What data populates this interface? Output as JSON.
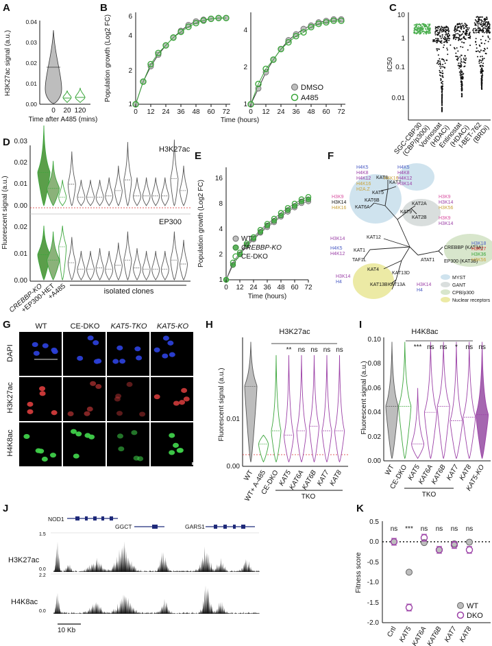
{
  "panels": [
    "A",
    "B",
    "C",
    "D",
    "E",
    "F",
    "G",
    "H",
    "I",
    "J",
    "K"
  ],
  "chart_data": [
    {
      "panel": "A",
      "type": "violin",
      "ylabel": "H3K27ac signal (a.u.)",
      "xlabel": "Time after A485 (mins)",
      "categories": [
        "0",
        "20",
        "120"
      ],
      "medians": [
        0.018,
        0.004,
        0.004
      ],
      "ylim": [
        0,
        0.04
      ],
      "yticks": [
        "0.00",
        "0.01",
        "0.02",
        "0.03",
        "0.04"
      ],
      "colors": [
        "#bdbdbd",
        "#3aa53a",
        "#3aa53a"
      ]
    },
    {
      "panel": "B",
      "type": "line",
      "xlabel": "Time (hours)",
      "ylabel": "Population growth (Log2 FC)",
      "x": [
        0,
        6,
        12,
        18,
        24,
        30,
        36,
        42,
        48,
        54,
        60,
        66,
        72
      ],
      "left": {
        "ylim": [
          1,
          6
        ],
        "yticks": [
          "1",
          "2",
          "4",
          "6"
        ],
        "series": [
          {
            "name": "DMSO",
            "values": [
              1,
              1.6,
              2.2,
              2.8,
              3.4,
              4.0,
              4.6,
              5.2,
              5.6,
              5.8,
              5.9,
              6.0,
              6.0
            ]
          },
          {
            "name": "A485",
            "values": [
              1,
              1.6,
              2.3,
              2.9,
              3.4,
              4.0,
              4.5,
              5.0,
              5.4,
              5.7,
              5.9,
              6.0,
              6.0
            ]
          }
        ]
      },
      "right": {
        "ylim": [
          1,
          4
        ],
        "yticks": [
          "1",
          "2",
          "4"
        ],
        "series": [
          {
            "name": "DMSO",
            "values": [
              1,
              1.3,
              1.7,
              2.1,
              2.5,
              2.9,
              3.2,
              3.5,
              3.7,
              3.9,
              4.0,
              4.1,
              4.1
            ]
          },
          {
            "name": "A485",
            "values": [
              1,
              1.4,
              1.8,
              2.1,
              2.5,
              2.8,
              3.1,
              3.3,
              3.6,
              3.8,
              3.9,
              4.0,
              4.0
            ]
          }
        ]
      },
      "legend": [
        "DMSO",
        "A485"
      ]
    },
    {
      "panel": "C",
      "type": "scatter",
      "ylabel": "IC50",
      "yticks": [
        "0.01",
        "0.1",
        "1",
        "10"
      ],
      "categories": [
        "SGC-CBP30 (CBP/p300i)",
        "Vorinostat (HDACi)",
        "Entinostat (HDACi)",
        "I-BET-762 (BRDi)"
      ],
      "medians": [
        3.5,
        1.2,
        1.5,
        2.5
      ],
      "colors": [
        "#4caf50",
        "#111111",
        "#111111",
        "#111111"
      ]
    },
    {
      "panel": "D",
      "type": "violin",
      "ylabel": "Fluorescent signal (a.u.)",
      "top": {
        "title": "H3K27ac",
        "yticks": [
          "0.00",
          "0.01",
          "0.02",
          "0.03"
        ],
        "threshold": 0.004,
        "medians": [
          0.0165,
          0.009,
          0.005,
          0.011,
          0.005,
          0.005,
          0.005,
          0.0055,
          0.008,
          0.013,
          0.0055,
          0.0055,
          0.0055,
          0.0055,
          0.0135,
          0.008
        ]
      },
      "bottom": {
        "title": "EP300",
        "yticks": [
          "0.00",
          "0.01",
          "0.02"
        ],
        "medians": [
          0.01,
          0.008,
          0.013,
          0.007,
          0.0045,
          0.0045,
          0.005,
          0.0045,
          0.006,
          0.008,
          0.005,
          0.0045,
          0.0045,
          0.0045,
          0.008,
          0.0065
        ]
      },
      "xlabels": [
        "CREBBP-KO",
        "+EP300-HET",
        "+A485",
        "isolated clones"
      ]
    },
    {
      "panel": "E",
      "type": "line",
      "xlabel": "Time  (hours)",
      "ylabel": "Population growth (Log2 FC)",
      "x": [
        0,
        6,
        12,
        18,
        24,
        30,
        36,
        42,
        48,
        54,
        60,
        66,
        72
      ],
      "yticks": [
        "1",
        "2",
        "4",
        "8",
        "16"
      ],
      "series": [
        {
          "name": "WT",
          "values": [
            1,
            1.5,
            2,
            2.5,
            3,
            3.6,
            4.2,
            4.8,
            5.6,
            6.4,
            7.2,
            8.1,
            8.5
          ]
        },
        {
          "name": "CREBBP-KO",
          "values": [
            1,
            1.5,
            2,
            2.6,
            3.1,
            3.7,
            4.4,
            5.0,
            5.8,
            6.7,
            7.5,
            8.5,
            9.0
          ]
        },
        {
          "name": "CE-DKO",
          "values": [
            1,
            1.6,
            2.1,
            2.7,
            3.2,
            3.9,
            4.6,
            5.3,
            6.2,
            7.1,
            8.0,
            9.0,
            9.6
          ]
        }
      ]
    },
    {
      "panel": "H",
      "type": "violin",
      "title": "H3K27ac",
      "ylabel": "Fluorescent signal (a.u.)",
      "categories": [
        "WT",
        "WT+ A-485",
        "CE-DKO",
        "KAT5",
        "KAT6A",
        "KAT6B",
        "KAT7",
        "KAT8"
      ],
      "medians": [
        0.009,
        0.0025,
        0.004,
        0.0035,
        0.004,
        0.0045,
        0.004,
        0.004
      ],
      "sig": [
        "**",
        "ns",
        "ns",
        "ns",
        "ns"
      ],
      "group_label": "TKO",
      "yticks": [
        "0.00",
        "0.01"
      ]
    },
    {
      "panel": "I",
      "type": "violin",
      "title": "H4K8ac",
      "ylabel": "Fluorescent signal (a.u.)",
      "categories": [
        "WT",
        "CE-DKO",
        "KAT5",
        "KAT6A",
        "KAT6B",
        "KAT7",
        "KAT8",
        "KAT5-KO"
      ],
      "medians": [
        0.045,
        0.045,
        0.014,
        0.04,
        0.045,
        0.033,
        0.036,
        0.038
      ],
      "sig": [
        "***",
        "ns",
        "ns",
        "*",
        "ns",
        "ns"
      ],
      "group_label": "TKO",
      "yticks": [
        "0.00",
        "0.02",
        "0.04",
        "0.06",
        "0.08",
        "0.10"
      ]
    },
    {
      "panel": "K",
      "type": "scatter",
      "ylabel": "Fitness score",
      "categories": [
        "Crtl",
        "KAT5",
        "KAT6A",
        "KAT6B",
        "KAT7",
        "KAT8"
      ],
      "series": [
        {
          "name": "WT",
          "values": [
            0,
            -0.75,
            -0.02,
            -0.2,
            -0.05,
            -0.01
          ]
        },
        {
          "name": "DKO",
          "values": [
            0,
            -1.62,
            0.1,
            -0.2,
            -0.08,
            -0.2
          ]
        }
      ],
      "sig": [
        "ns",
        "***",
        "ns",
        "ns",
        "ns",
        "ns"
      ],
      "yticks": [
        "0.5",
        "0.0",
        "-0.5",
        "-1.0",
        "-1.5",
        "-2.0"
      ]
    }
  ],
  "texts": {
    "A_ylabel": "H3K27ac signal (a.u.)",
    "A_xlabel": "Time after A485 (mins)",
    "B_ylabel": "Population growth (Log2 FC)",
    "B_xlabel": "Time (hours)",
    "B_leg1": "DMSO",
    "B_leg2": "A485",
    "C_ylabel": "IC50",
    "C_c1": "SGC-CBP30",
    "C_c1b": "(CBP/p300i)",
    "C_c2": "Vorinostat",
    "C_c2b": "(HDACi)",
    "C_c3": "Entinostat",
    "C_c3b": "(HDACi)",
    "C_c4": "I-BET-762",
    "C_c4b": "(BRDi)",
    "D_t1": "H3K27ac",
    "D_t2": "EP300",
    "D_ylabel": "Fluorescent signal (a.u.)",
    "D_x1": "CREBBP-KO",
    "D_x2": "+EP300-HET",
    "D_x3": "+A485",
    "D_x4": "isolated clones",
    "E_ylabel": "Population growth (Log2 FC)",
    "E_xlabel": "Time  (hours)",
    "E_leg1": "WT",
    "E_leg2": "CREBBP-KO",
    "E_leg3": "CE-DKO",
    "G_cols": [
      "WT",
      "CE-DKO",
      "KAT5-TKO",
      "KAT5-KO"
    ],
    "G_rows": [
      "DAPI",
      "H3K27ac",
      "H4K8ac"
    ],
    "H_title": "H3K27ac",
    "I_title": "H4K8ac",
    "HI_ylabel": "Fluorescent signal (a.u.)",
    "TKO": "TKO",
    "J_genes": [
      "NOD1",
      "GGCT",
      "GARS1"
    ],
    "J_tracks": [
      "H3K27ac",
      "H4K8ac"
    ],
    "J_s1": "1.5",
    "J_s2": "2.2",
    "J_z1": "0.0",
    "J_z2": "0.0",
    "J_scale": "10 Kb",
    "K_ylabel": "Fitness score",
    "K_leg1": "WT",
    "K_leg2": "DKO",
    "F_leg": [
      "MYST",
      "GANT",
      "CPB/p300",
      "Nuclear receptors"
    ]
  },
  "tree": {
    "nodes": [
      "KAT8",
      "KAT7",
      "KAT5",
      "KAT6B",
      "KAT6A",
      "KAT2A",
      "KAT2B",
      "KAT9",
      "KAT12",
      "KAT1",
      "TAF1L",
      "KAT4",
      "KAT13D",
      "KAT13B",
      "KAT13A",
      "ATAT1",
      "CREBBP (KAT3A)",
      "EP300 (KAT3B)",
      "KAT14"
    ]
  },
  "colors": {
    "grey": "#bdbdbd",
    "green": "#3aa53a",
    "lightgreen": "#8bc58b",
    "purple": "#9b3fa6",
    "red": "#d62728",
    "blue": "#4a5bc4",
    "track": "#111111"
  }
}
